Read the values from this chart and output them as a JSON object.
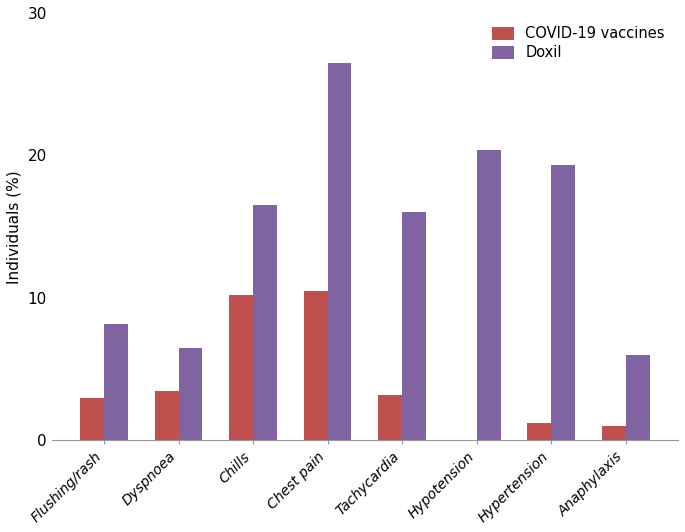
{
  "categories": [
    "Flushing/rash",
    "Dyspnoea",
    "Chills",
    "Chest pain",
    "Tachycardia",
    "Hypotension",
    "Hypertension",
    "Anaphylaxis"
  ],
  "covid_values": [
    3.0,
    3.5,
    10.2,
    10.5,
    3.2,
    0.0,
    1.2,
    1.0
  ],
  "doxil_values": [
    8.2,
    6.5,
    16.5,
    26.5,
    16.0,
    20.4,
    19.3,
    6.0
  ],
  "covid_color": "#c0504d",
  "doxil_color": "#8064a2",
  "legend_labels": [
    "COVID-19 vaccines",
    "Doxil"
  ],
  "ylabel": "Individuals (%)",
  "ylim": [
    0,
    30
  ],
  "yticks": [
    0,
    10,
    20,
    30
  ],
  "bar_width": 0.32,
  "background_color": "#ffffff",
  "figsize": [
    6.85,
    5.32
  ],
  "dpi": 100
}
